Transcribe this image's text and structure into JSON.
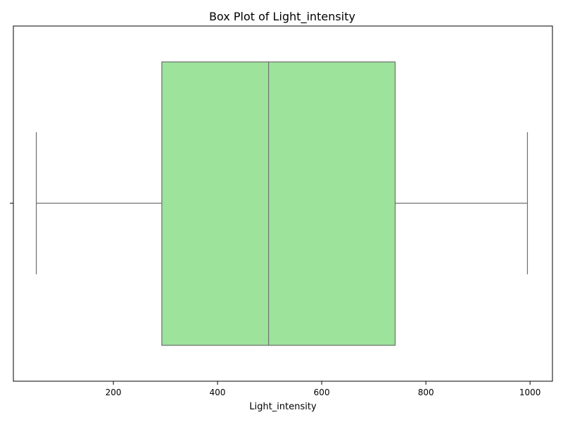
{
  "chart_data": {
    "type": "box",
    "title": "Box Plot of Light_intensity",
    "xlabel": "Light_intensity",
    "ylabel": "",
    "xlim": [
      8,
      1043
    ],
    "xticks": [
      200,
      400,
      600,
      800,
      1000
    ],
    "xtick_labels": [
      "200",
      "400",
      "600",
      "800",
      "1000"
    ],
    "grid": false,
    "orientation": "horizontal",
    "box": {
      "whisker_low": 52,
      "q1": 293,
      "median": 498,
      "q3": 741,
      "whisker_high": 995
    },
    "colors": {
      "box_fill": "#9de39b",
      "line": "#6e6e6e",
      "axis": "#000000"
    }
  }
}
